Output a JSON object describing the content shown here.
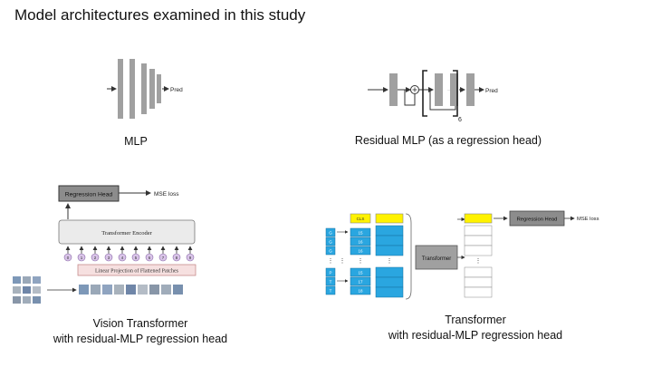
{
  "slide_title": "Model architectures examined in this study",
  "mlp": {
    "pred_label": "Pred",
    "caption": "MLP"
  },
  "residual_mlp": {
    "pred_label": "Pred",
    "repeat_count": "6",
    "caption": "Residual MLP (as a regression head)"
  },
  "vit": {
    "head_label": "Regression Head",
    "loss_label": "MSE loss",
    "encoder_label": "Transformer Encoder",
    "projection_label": "Linear Projection of Flattened Patches",
    "patch_position_numbers": [
      "0",
      "1",
      "2",
      "3",
      "4",
      "5",
      "6",
      "7",
      "8",
      "9"
    ],
    "caption_line1": "Vision Transformer",
    "caption_line2": "with residual-MLP regression head"
  },
  "transformer": {
    "cls_label": "CLS",
    "block_label": "Transformer",
    "head_label": "Regression Head",
    "loss_label": "MSE loss",
    "input_cells_top": [
      "G",
      "G",
      "G"
    ],
    "input_cells_bottom": [
      "P",
      "T",
      "T"
    ],
    "embed_cells_top": [
      "15",
      "16",
      "16"
    ],
    "embed_cells_bottom": [
      "15",
      "17",
      "18"
    ],
    "caption_line1": "Transformer",
    "caption_line2": "with residual-MLP regression head"
  },
  "colors": {
    "bar_gray": "#a0a0a0",
    "head_gray": "#8c8c8c",
    "cls_yellow": "#fff200",
    "token_blue": "#2aa6e0",
    "projection_pink": "#f6e0e0",
    "encoder_gray": "#ebebeb"
  }
}
